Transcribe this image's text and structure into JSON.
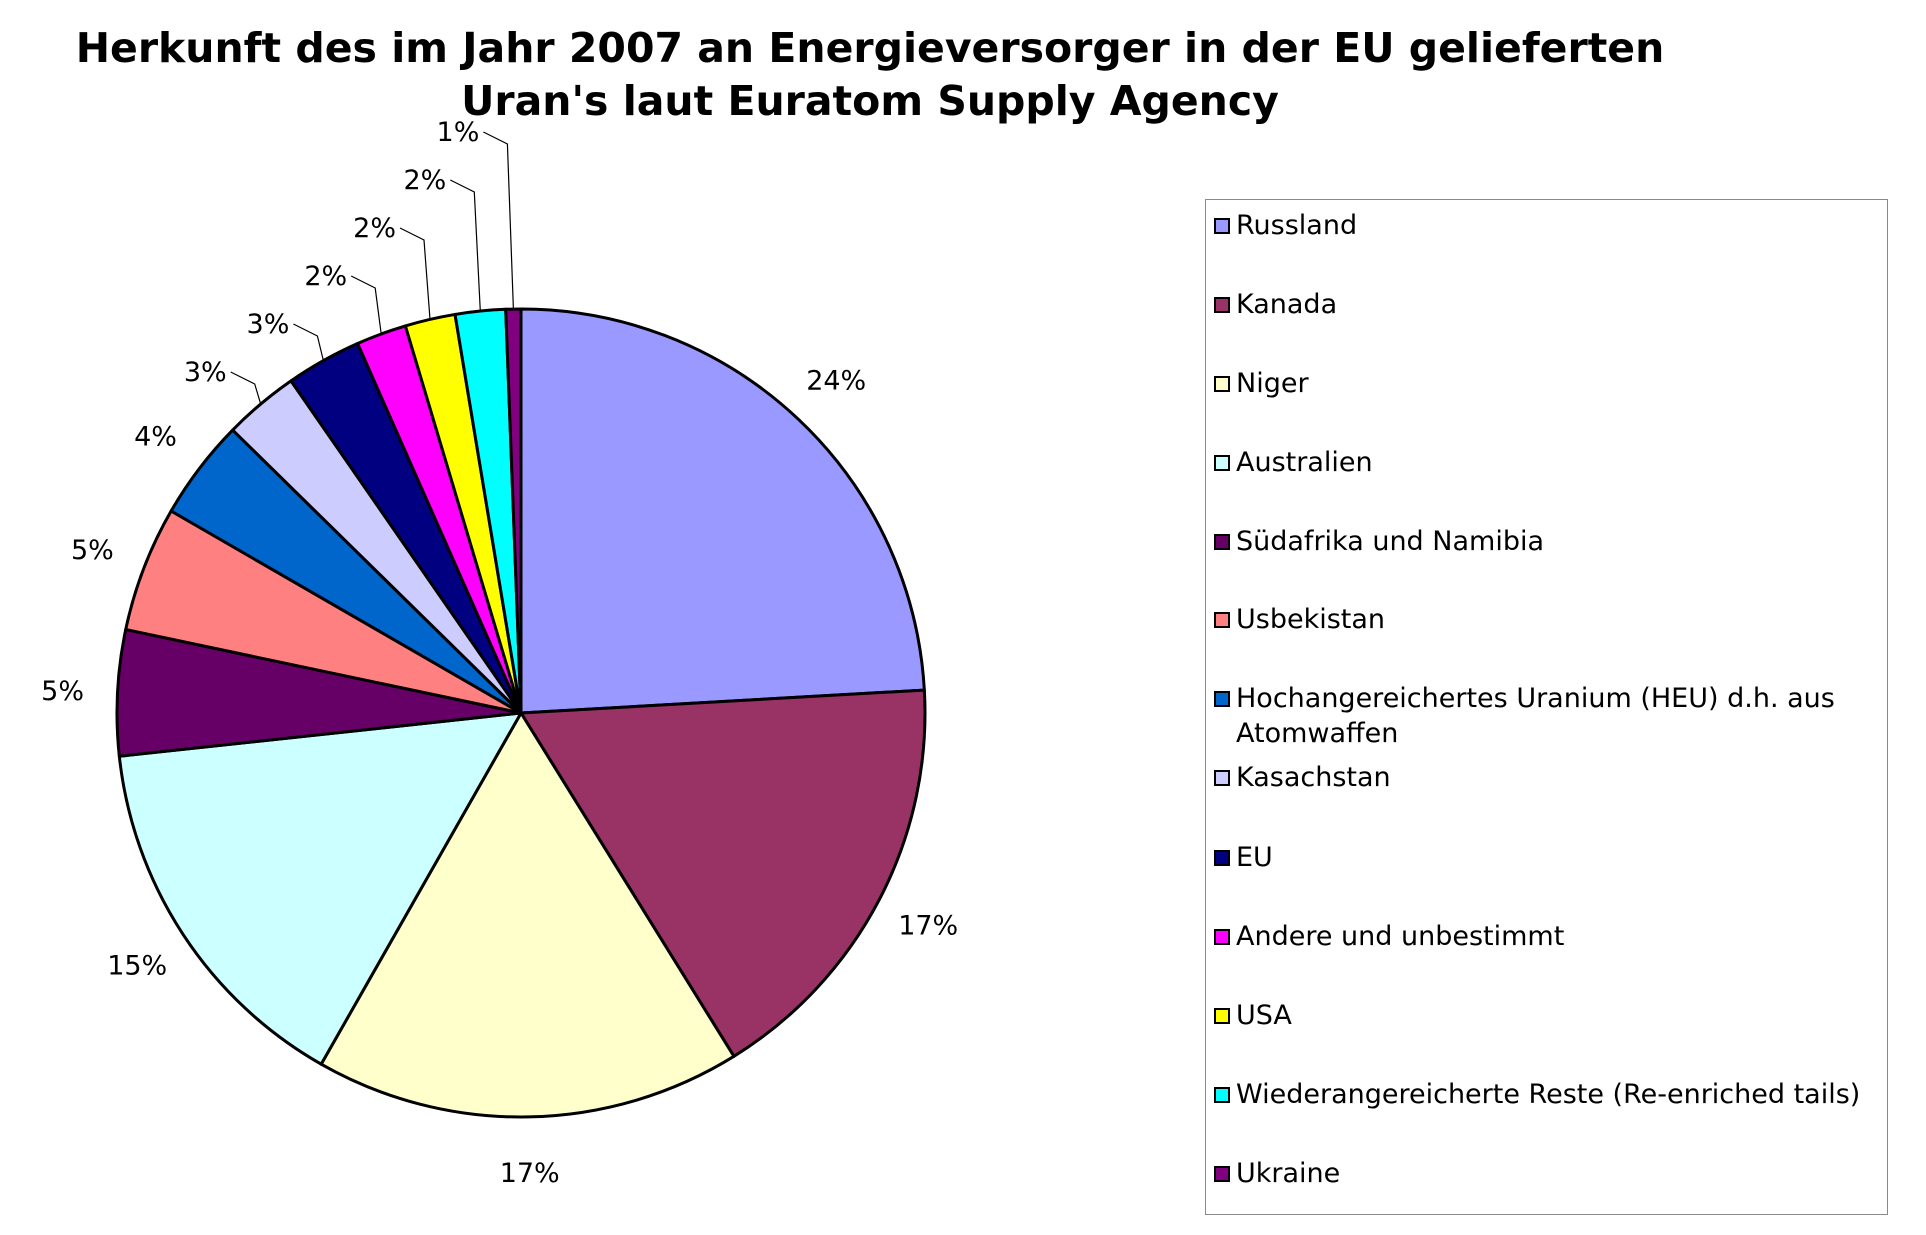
{
  "chart_data": {
    "type": "pie",
    "title": "Herkunft des im Jahr 2007 an Energieversorger in der EU gelieferten Uran's laut Euratom Supply Agency",
    "title_lines": [
      "Herkunft des im Jahr 2007 an Energieversorger in der EU gelieferten",
      "Uran's laut Euratom Supply Agency"
    ],
    "legend_position": "right",
    "slices": [
      {
        "name": "Russland",
        "value": 24,
        "label": "24%",
        "color": "#9999ff"
      },
      {
        "name": "Kanada",
        "value": 17,
        "label": "17%",
        "color": "#993366"
      },
      {
        "name": "Niger",
        "value": 17,
        "label": "17%",
        "color": "#ffffcc"
      },
      {
        "name": "Australien",
        "value": 15,
        "label": "15%",
        "color": "#ccffff"
      },
      {
        "name": "Südafrika und Namibia",
        "value": 5,
        "label": "5%",
        "color": "#660066"
      },
      {
        "name": "Usbekistan",
        "value": 5,
        "label": "5%",
        "color": "#ff8080"
      },
      {
        "name": "Hochangereichertes Uranium (HEU) d.h. aus Atomwaffen",
        "value": 4,
        "label": "4%",
        "color": "#0066cc"
      },
      {
        "name": "Kasachstan",
        "value": 3,
        "label": "3%",
        "color": "#ccccff"
      },
      {
        "name": "EU",
        "value": 3,
        "label": "3%",
        "color": "#000080"
      },
      {
        "name": "Andere und unbestimmt",
        "value": 2,
        "label": "2%",
        "color": "#ff00ff"
      },
      {
        "name": "USA",
        "value": 2,
        "label": "2%",
        "color": "#ffff00"
      },
      {
        "name": "Wiederangereicherte Reste (Re-enriched tails)",
        "value": 2,
        "label": "2%",
        "color": "#00ffff"
      },
      {
        "name": "Ukraine",
        "value": 0.6,
        "label": "",
        "color": "#800080"
      }
    ],
    "extra_labels": [
      "1%"
    ]
  }
}
